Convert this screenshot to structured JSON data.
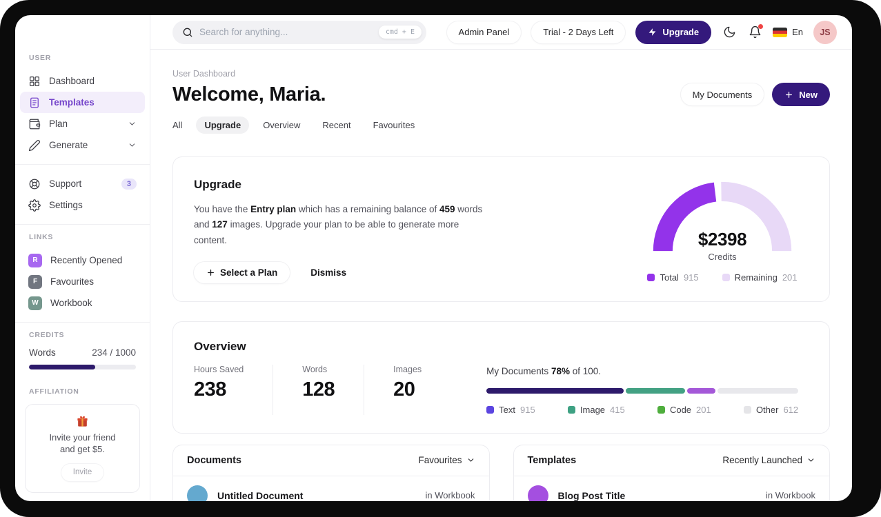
{
  "topbar": {
    "search": {
      "placeholder": "Search for anything...",
      "shortcut": "cmd + E"
    },
    "admin_panel_label": "Admin Panel",
    "trial_label": "Trial - 2 Days Left",
    "upgrade_label": "Upgrade",
    "language_label": "En",
    "avatar_initials": "JS"
  },
  "sidebar": {
    "user_section_label": "USER",
    "nav": [
      {
        "label": "Dashboard"
      },
      {
        "label": "Templates"
      },
      {
        "label": "Plan"
      },
      {
        "label": "Generate"
      }
    ],
    "support_label": "Support",
    "support_badge": "3",
    "settings_label": "Settings",
    "links_section_label": "LINKS",
    "links": [
      {
        "letter": "R",
        "label": "Recently Opened",
        "color": "#a768f0"
      },
      {
        "letter": "F",
        "label": "Favourites",
        "color": "#717680"
      },
      {
        "letter": "W",
        "label": "Workbook",
        "color": "#75978d"
      }
    ],
    "credits_section_label": "CREDITS",
    "credits": {
      "label": "Words",
      "value": "234 / 1000",
      "fill_pct": 62
    },
    "affiliation_section_label": "AFFILIATION",
    "affiliation": {
      "line1": "Invite your friend",
      "line2": "and get $5.",
      "button_label": "Invite"
    }
  },
  "header": {
    "breadcrumb": "User Dashboard",
    "title": "Welcome, Maria.",
    "my_documents_label": "My Documents",
    "new_label": "New",
    "tabs": [
      "All",
      "Upgrade",
      "Overview",
      "Recent",
      "Favourites"
    ]
  },
  "upgrade_card": {
    "title": "Upgrade",
    "body": {
      "p1": "You have the ",
      "b1": "Entry plan",
      "p2": " which has a remaining balance of ",
      "b2": "459",
      "p3": " words and ",
      "b3": "127",
      "p4": " images. Upgrade your plan to be able to generate more content."
    },
    "select_plan_label": "Select a Plan",
    "dismiss_label": "Dismiss"
  },
  "overview_card": {
    "title": "Overview",
    "stats": [
      {
        "label": "Hours Saved",
        "value": "238"
      },
      {
        "label": "Words",
        "value": "128"
      },
      {
        "label": "Images",
        "value": "20"
      }
    ],
    "progress_title": {
      "p1": "My Documents ",
      "b1": "78%",
      "p2": " of 100."
    }
  },
  "chart_data": [
    {
      "type": "donut",
      "title": "Credits gauge",
      "center_value": "$2398",
      "center_label": "Credits",
      "legend_position": "bottom",
      "segments": [
        {
          "label": "Total",
          "value": 915,
          "color": "#9333ea",
          "start_deg": 180,
          "end_deg": 97
        },
        {
          "label": "Remaining",
          "value": 201,
          "color": "#e8d9f7",
          "start_deg": 91,
          "end_deg": 0
        }
      ]
    },
    {
      "type": "stacked_bar",
      "title": "My Documents 78% of 100.",
      "percent": 78,
      "of_total": 100,
      "segments": [
        {
          "label": "Text",
          "value": 915,
          "bar_color": "#2d1a6b",
          "legend_color": "#5b45e0",
          "width_pct": 44
        },
        {
          "label": "Image",
          "value": 415,
          "bar_color": "#43a183",
          "legend_color": "#3ea183",
          "width_pct": 19
        },
        {
          "label": "Code",
          "value": 201,
          "bar_color": "#a458d8",
          "legend_color": "#4fae3d",
          "width_pct": 9
        },
        {
          "label": "Other",
          "value": 612,
          "bar_color": "#e8e8ec",
          "legend_color": "#e5e5e8",
          "width_pct": 28
        }
      ]
    }
  ],
  "documents_card": {
    "title": "Documents",
    "filter_label": "Favourites",
    "rows": [
      {
        "title": "Untitled Document",
        "location": "in Workbook",
        "avatar_color": "#64a9cf"
      }
    ]
  },
  "templates_card": {
    "title": "Templates",
    "filter_label": "Recently Launched",
    "rows": [
      {
        "title": "Blog Post Title",
        "location": "in Workbook",
        "avatar_color": "#a44fe0"
      }
    ]
  }
}
